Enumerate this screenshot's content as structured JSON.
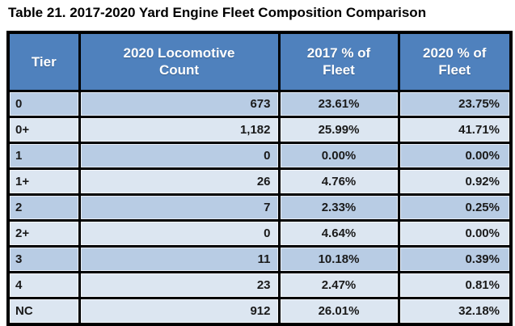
{
  "title": "Table 21. 2017-2020 Yard Engine Fleet Composition Comparison",
  "colors": {
    "header_bg": "#4f81bd",
    "band_dark": "#b8cce4",
    "band_light": "#dce6f1",
    "border": "#000000",
    "header_text": "#ffffff",
    "data_text": "#1a1a1a"
  },
  "table": {
    "columns": [
      {
        "label": "Tier",
        "align": "left"
      },
      {
        "label": "2020 Locomotive Count",
        "align": "right"
      },
      {
        "label": "2017 % of Fleet",
        "align": "center"
      },
      {
        "label": "2020 % of Fleet",
        "align": "right"
      }
    ],
    "rows": [
      {
        "tier": "0",
        "count": "673",
        "pct2017": "23.61%",
        "pct2020": "23.75%",
        "band": "dark"
      },
      {
        "tier": "0+",
        "count": "1,182",
        "pct2017": "25.99%",
        "pct2020": "41.71%",
        "band": "light"
      },
      {
        "tier": "1",
        "count": "0",
        "pct2017": "0.00%",
        "pct2020": "0.00%",
        "band": "dark"
      },
      {
        "tier": "1+",
        "count": "26",
        "pct2017": "4.76%",
        "pct2020": "0.92%",
        "band": "light"
      },
      {
        "tier": "2",
        "count": "7",
        "pct2017": "2.33%",
        "pct2020": "0.25%",
        "band": "dark"
      },
      {
        "tier": "2+",
        "count": "0",
        "pct2017": "4.64%",
        "pct2020": "0.00%",
        "band": "light"
      },
      {
        "tier": "3",
        "count": "11",
        "pct2017": "10.18%",
        "pct2020": "0.39%",
        "band": "dark"
      },
      {
        "tier": "4",
        "count": "23",
        "pct2017": "2.47%",
        "pct2020": "0.81%",
        "band": "light"
      },
      {
        "tier": "NC",
        "count": "912",
        "pct2017": "26.01%",
        "pct2020": "32.18%",
        "band": "light"
      }
    ]
  },
  "chart_data": {
    "type": "table",
    "title": "Table 21. 2017-2020 Yard Engine Fleet Composition Comparison",
    "columns": [
      "Tier",
      "2020 Locomotive Count",
      "2017 % of Fleet",
      "2020 % of Fleet"
    ],
    "rows": [
      [
        "0",
        673,
        "23.61%",
        "23.75%"
      ],
      [
        "0+",
        1182,
        "25.99%",
        "41.71%"
      ],
      [
        "1",
        0,
        "0.00%",
        "0.00%"
      ],
      [
        "1+",
        26,
        "4.76%",
        "0.92%"
      ],
      [
        "2",
        7,
        "2.33%",
        "0.25%"
      ],
      [
        "2+",
        0,
        "4.64%",
        "0.00%"
      ],
      [
        "3",
        11,
        "10.18%",
        "0.39%"
      ],
      [
        "4",
        23,
        "2.47%",
        "0.81%"
      ],
      [
        "NC",
        912,
        "26.01%",
        "32.18%"
      ]
    ]
  }
}
